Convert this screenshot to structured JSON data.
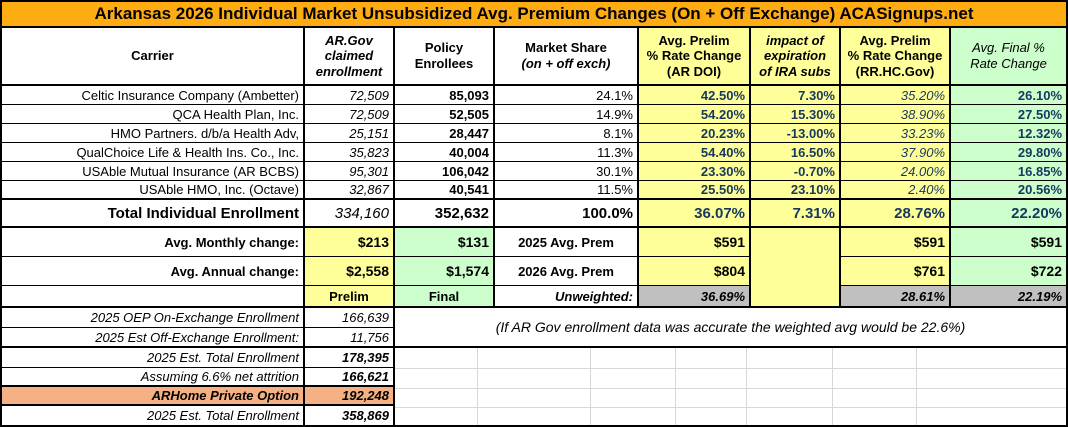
{
  "title": "Arkansas 2026 Individual Market Unsubsidized Avg. Premium Changes (On + Off Exchange) ACASignups.net",
  "colors": {
    "title_bg": "#FFAC12",
    "prelim_yellow": "#FFFF99",
    "final_green": "#CCFFCC",
    "unweighted_gray": "#C0C0C0",
    "arhome_peach": "#F5B183",
    "pct_text_navy": "#17375E"
  },
  "headers": {
    "carrier": "Carrier",
    "argov1": "AR.Gov",
    "argov2": "claimed",
    "argov3": "enrollment",
    "policy1": "Policy",
    "policy2": "Enrollees",
    "share1": "Market Share",
    "share2": "(on + off exch)",
    "doi1": "Avg. Prelim",
    "doi2": "% Rate Change",
    "doi3": "(AR DOI)",
    "ira1": "impact of",
    "ira2": "expiration",
    "ira3": "of IRA subs",
    "rr1": "Avg. Prelim",
    "rr2": "% Rate Change",
    "rr3": "(RR.HC.Gov)",
    "final1": "Avg. Final %",
    "final2": "Rate Change"
  },
  "carriers": [
    {
      "name": "Celtic Insurance Company (Ambetter)",
      "argov": "72,509",
      "enrollees": "85,093",
      "share": "24.1%",
      "doi": "42.50%",
      "ira": "7.30%",
      "rr": "35.20%",
      "final": "26.10%"
    },
    {
      "name": "QCA Health Plan, Inc.",
      "argov": "72,509",
      "enrollees": "52,505",
      "share": "14.9%",
      "doi": "54.20%",
      "ira": "15.30%",
      "rr": "38.90%",
      "final": "27.50%"
    },
    {
      "name": "HMO Partners. d/b/a Health Adv,",
      "argov": "25,151",
      "enrollees": "28,447",
      "share": "8.1%",
      "doi": "20.23%",
      "ira": "-13.00%",
      "rr": "33.23%",
      "final": "12.32%"
    },
    {
      "name": "QualChoice Life & Health Ins. Co., Inc.",
      "argov": "35,823",
      "enrollees": "40,004",
      "share": "11.3%",
      "doi": "54.40%",
      "ira": "16.50%",
      "rr": "37.90%",
      "final": "29.80%"
    },
    {
      "name": "USAble Mutual Insurance (AR BCBS)",
      "argov": "95,301",
      "enrollees": "106,042",
      "share": "30.1%",
      "doi": "23.30%",
      "ira": "-0.70%",
      "rr": "24.00%",
      "final": "16.85%"
    },
    {
      "name": "USAble HMO, Inc. (Octave)",
      "argov": "32,867",
      "enrollees": "40,541",
      "share": "11.5%",
      "doi": "25.50%",
      "ira": "23.10%",
      "rr": "2.40%",
      "final": "20.56%"
    }
  ],
  "total": {
    "label": "Total Individual Enrollment",
    "argov": "334,160",
    "enrollees": "352,632",
    "share": "100.0%",
    "doi": "36.07%",
    "ira": "7.31%",
    "rr": "28.76%",
    "final": "22.20%"
  },
  "monthly": {
    "label": "Avg. Monthly change:",
    "prelim_amt": "$213",
    "final_amt": "$131",
    "prem_label": "2025 Avg. Prem",
    "doi_amt": "$591",
    "rr_amt": "$591",
    "final_prem": "$591"
  },
  "annual": {
    "label": "Avg. Annual change:",
    "prelim_amt": "$2,558",
    "final_amt": "$1,574",
    "prem_label": "2026 Avg. Prem",
    "doi_amt": "$804",
    "rr_amt": "$761",
    "final_prem": "$722"
  },
  "summary": {
    "prelim": "Prelim",
    "final": "Final",
    "unweighted": "Unweighted:",
    "doi_unweighted": "36.69%",
    "rr_unweighted": "28.61%",
    "final_unweighted": "22.19%"
  },
  "bottom_rows": [
    {
      "label": "2025 OEP On-Exchange Enrollment",
      "value": "166,639"
    },
    {
      "label": "2025 Est Off-Exchange Enrollment:",
      "value": "11,756"
    },
    {
      "label": "2025 Est. Total Enrollment",
      "value": "178,395"
    },
    {
      "label": "Assuming 6.6% net attrition",
      "value": "166,621"
    },
    {
      "label": "ARHome Private Option",
      "value": "192,248"
    },
    {
      "label": "2025 Est. Total Enrollment",
      "value": "358,869"
    }
  ],
  "note": "(If AR Gov enrollment data was accurate the weighted avg would be 22.6%)",
  "chart_data": {
    "type": "table",
    "title": "Arkansas 2026 Individual Market Unsubsidized Avg. Premium Changes (On + Off Exchange) ACASignups.net",
    "columns": [
      "Carrier",
      "AR.Gov claimed enrollment",
      "Policy Enrollees",
      "Market Share (on + off exch)",
      "Avg. Prelim % Rate Change (AR DOI)",
      "impact of expiration of IRA subs",
      "Avg. Prelim % Rate Change (RR.HC.Gov)",
      "Avg. Final % Rate Change"
    ],
    "rows": [
      [
        "Celtic Insurance Company (Ambetter)",
        72509,
        85093,
        24.1,
        42.5,
        7.3,
        35.2,
        26.1
      ],
      [
        "QCA Health Plan, Inc.",
        72509,
        52505,
        14.9,
        54.2,
        15.3,
        38.9,
        27.5
      ],
      [
        "HMO Partners. d/b/a Health Adv,",
        25151,
        28447,
        8.1,
        20.23,
        -13.0,
        33.23,
        12.32
      ],
      [
        "QualChoice Life & Health Ins. Co., Inc.",
        35823,
        40004,
        11.3,
        54.4,
        16.5,
        37.9,
        29.8
      ],
      [
        "USAble Mutual Insurance (AR BCBS)",
        95301,
        106042,
        30.1,
        23.3,
        -0.7,
        24.0,
        16.85
      ],
      [
        "USAble HMO, Inc. (Octave)",
        32867,
        40541,
        11.5,
        25.5,
        23.1,
        2.4,
        20.56
      ]
    ],
    "total_row": [
      "Total Individual Enrollment",
      334160,
      352632,
      100.0,
      36.07,
      7.31,
      28.76,
      22.2
    ],
    "avg_monthly_change": {
      "prelim": 213,
      "final": 131
    },
    "avg_annual_change": {
      "prelim": 2558,
      "final": 1574
    },
    "avg_premium_2025": {
      "ar_doi": 591,
      "rr_hc_gov": 591,
      "final": 591
    },
    "avg_premium_2026": {
      "ar_doi": 804,
      "rr_hc_gov": 761,
      "final": 722
    },
    "unweighted_avgs": {
      "prelim_ar_doi": 36.69,
      "prelim_rr_hc_gov": 28.61,
      "final": 22.19
    },
    "enrollment_detail": [
      {
        "label": "2025 OEP On-Exchange Enrollment",
        "value": 166639
      },
      {
        "label": "2025 Est Off-Exchange Enrollment:",
        "value": 11756
      },
      {
        "label": "2025 Est. Total Enrollment",
        "value": 178395
      },
      {
        "label": "Assuming 6.6% net attrition",
        "value": 166621
      },
      {
        "label": "ARHome Private Option",
        "value": 192248
      },
      {
        "label": "2025 Est. Total Enrollment",
        "value": 358869
      }
    ],
    "note": "(If AR Gov enrollment data was accurate the weighted avg would be 22.6%)"
  }
}
